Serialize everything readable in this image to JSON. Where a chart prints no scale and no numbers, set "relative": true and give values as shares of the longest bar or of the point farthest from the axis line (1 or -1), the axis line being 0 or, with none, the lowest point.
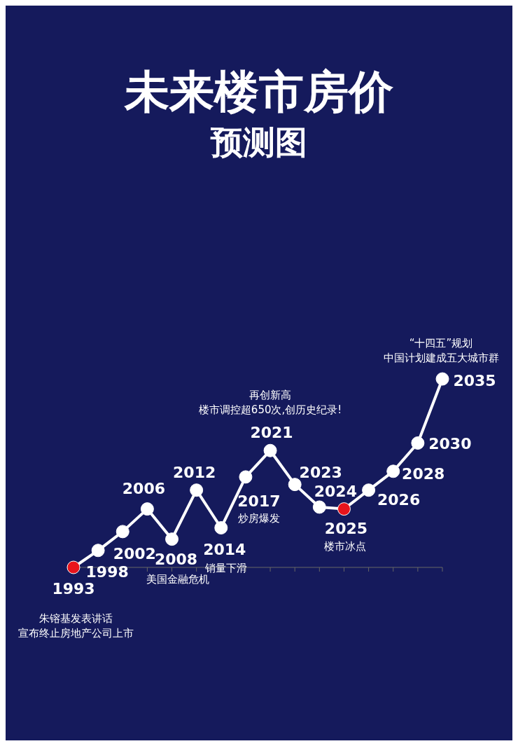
{
  "chart_data": {
    "type": "line",
    "title": "未来楼市房价",
    "subtitle": "预测图",
    "relative": true,
    "marker": "circle",
    "grid": false,
    "legend": false,
    "categories": [
      null,
      null,
      null,
      null,
      null,
      null,
      null,
      null,
      null,
      null,
      null,
      null,
      null,
      null,
      null,
      null
    ],
    "series": [
      {
        "color": "#ffffff",
        "values": [
          0,
          0.09,
          0.19,
          0.31,
          0.15,
          0.41,
          0.21,
          0.48,
          0.62,
          0.44,
          0.32,
          0.31,
          0.41,
          0.51,
          0.66,
          1
        ],
        "colors": [
          "#e8141c",
          "#ffffff",
          "#ffffff",
          "#ffffff",
          "#ffffff",
          "#ffffff",
          "#ffffff",
          "#ffffff",
          "#ffffff",
          "#ffffff",
          "#ffffff",
          "#e8141c",
          "#ffffff",
          "#ffffff",
          "#ffffff",
          "#ffffff"
        ]
      }
    ],
    "annotations": [
      "1993",
      "1998",
      "2002",
      "2006",
      "2008",
      "2012",
      "2014",
      "2017",
      "2021",
      "2023",
      "2024",
      "2025",
      "2026",
      "2028",
      "2030",
      "2035",
      "朱镕基发表讲话宣布终止房地产公司上市",
      "美国金融危机",
      "销量下滑",
      "炒房爆发",
      "再创新高楼市调控超650次,创历史纪录!",
      "楼市冰点",
      "“十四五”规划中国计划建成五大城市群"
    ]
  }
}
